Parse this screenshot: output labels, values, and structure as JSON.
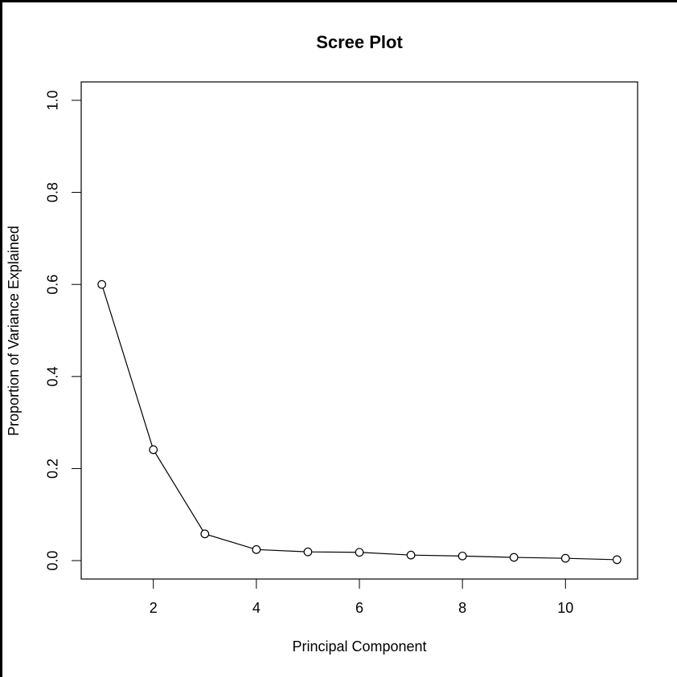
{
  "chart_data": {
    "type": "line",
    "title": "Scree Plot",
    "x_label": "Principal Component",
    "y_label": "Proportion of Variance Explained",
    "x": [
      1,
      2,
      3,
      4,
      5,
      6,
      7,
      8,
      9,
      10,
      11
    ],
    "series": [
      {
        "color": "#000000",
        "values": [
          0.6,
          0.241,
          0.058,
          0.024,
          0.019,
          0.018,
          0.012,
          0.01,
          0.007,
          0.005,
          0.002
        ]
      }
    ],
    "xlim": [
      0.6,
      11.4
    ],
    "xticks": [
      2,
      4,
      6,
      8,
      10
    ],
    "ylim": [
      -0.04,
      1.04
    ],
    "yticks": [
      {
        "value": 0,
        "label": "0.0"
      },
      0.2,
      0.4,
      0.6,
      0.8,
      {
        "value": 1,
        "label": "1.0"
      }
    ]
  }
}
